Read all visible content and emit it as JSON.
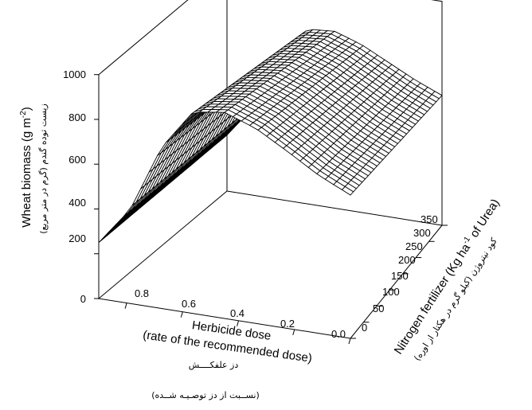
{
  "chart_data": {
    "type": "surface3d",
    "z_axis": {
      "label": "Wheat biomass (g m",
      "label_sup": "-2",
      "label_close": ")",
      "label_fa": "زیست توده گندم (گرم در متر مربع)",
      "range": [
        0,
        1000
      ],
      "ticks": [
        "0",
        "200",
        "400",
        "600",
        "800",
        "1000"
      ]
    },
    "x_axis": {
      "label_line1": "Herbicide dose",
      "label_line2": "(rate of the recommended dose)",
      "label_fa_line1": "دز علفکــــش",
      "label_fa_line2": "(نســبت از دز توصـیـه شــده)",
      "range": [
        0,
        0.9
      ],
      "ticks": [
        "0.8",
        "0.6",
        "0.4",
        "0.2",
        "0.0"
      ]
    },
    "y_axis": {
      "label": "Nitrogen fertilizer (Kg ha",
      "label_sup": "-1",
      "label_close": " of Urea)",
      "label_fa": "کود نیتروژن (کیلو گرم در هکتار از اوره)",
      "range": [
        0,
        350
      ],
      "ticks": [
        "0",
        "50",
        "100",
        "150",
        "200",
        "250",
        "300",
        "350"
      ]
    },
    "surface_samples": [
      {
        "herbicide": 0.9,
        "nitrogen": 0,
        "biomass": 250
      },
      {
        "herbicide": 0.0,
        "nitrogen": 0,
        "biomass": 640
      },
      {
        "herbicide": 0.9,
        "nitrogen": 350,
        "biomass": 250
      },
      {
        "herbicide": 0.0,
        "nitrogen": 350,
        "biomass": 580
      },
      {
        "herbicide": 0.6,
        "nitrogen": 0,
        "biomass": 900
      },
      {
        "herbicide": 0.6,
        "nitrogen": 350,
        "biomass": 760
      }
    ],
    "grid": true,
    "mesh_rows": 31,
    "mesh_cols": 30
  }
}
